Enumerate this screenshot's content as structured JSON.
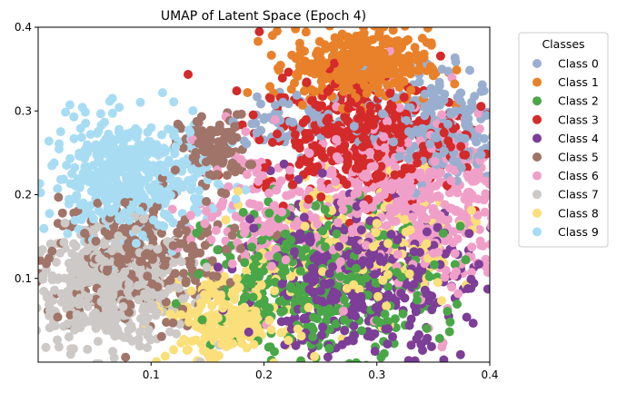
{
  "chart_data": {
    "type": "scatter",
    "title": "UMAP of Latent Space (Epoch 4)",
    "xlabel": "",
    "ylabel": "",
    "xlim": [
      0.0,
      0.4
    ],
    "ylim": [
      0.0,
      0.4
    ],
    "xticks": [
      "0.1",
      "0.2",
      "0.3",
      "0.4"
    ],
    "yticks": [
      "0.1",
      "0.2",
      "0.3",
      "0.4"
    ],
    "grid": false,
    "legend": {
      "title": "Classes",
      "placement": "outside-right"
    },
    "series": [
      {
        "name": "Class 0",
        "color": "#9aafd0",
        "points": [
          [
            0.35,
            0.29
          ],
          [
            0.37,
            0.3
          ],
          [
            0.24,
            0.3
          ],
          [
            0.33,
            0.27
          ],
          [
            0.38,
            0.25
          ],
          [
            0.36,
            0.32
          ],
          [
            0.2,
            0.29
          ],
          [
            0.3,
            0.31
          ]
        ]
      },
      {
        "name": "Class 1",
        "color": "#e8812a",
        "points": [
          [
            0.28,
            0.38
          ],
          [
            0.3,
            0.37
          ],
          [
            0.32,
            0.36
          ],
          [
            0.26,
            0.35
          ],
          [
            0.29,
            0.34
          ],
          [
            0.27,
            0.33
          ],
          [
            0.31,
            0.34
          ],
          [
            0.25,
            0.37
          ]
        ]
      },
      {
        "name": "Class 2",
        "color": "#4aa748",
        "points": [
          [
            0.26,
            0.06
          ],
          [
            0.24,
            0.09
          ],
          [
            0.28,
            0.08
          ],
          [
            0.22,
            0.12
          ],
          [
            0.3,
            0.05
          ],
          [
            0.19,
            0.1
          ],
          [
            0.32,
            0.09
          ],
          [
            0.25,
            0.14
          ]
        ]
      },
      {
        "name": "Class 3",
        "color": "#d42a2a",
        "points": [
          [
            0.28,
            0.28
          ],
          [
            0.31,
            0.3
          ],
          [
            0.26,
            0.25
          ],
          [
            0.33,
            0.24
          ],
          [
            0.24,
            0.27
          ],
          [
            0.3,
            0.22
          ],
          [
            0.29,
            0.32
          ],
          [
            0.35,
            0.27
          ]
        ]
      },
      {
        "name": "Class 4",
        "color": "#7d3e97",
        "points": [
          [
            0.27,
            0.05
          ],
          [
            0.32,
            0.08
          ],
          [
            0.24,
            0.03
          ],
          [
            0.29,
            0.12
          ],
          [
            0.34,
            0.11
          ],
          [
            0.2,
            0.07
          ],
          [
            0.31,
            0.04
          ],
          [
            0.25,
            0.16
          ]
        ]
      },
      {
        "name": "Class 5",
        "color": "#a07468",
        "points": [
          [
            0.15,
            0.26
          ],
          [
            0.17,
            0.25
          ],
          [
            0.12,
            0.2
          ],
          [
            0.08,
            0.15
          ],
          [
            0.05,
            0.13
          ],
          [
            0.13,
            0.17
          ],
          [
            0.03,
            0.1
          ],
          [
            0.11,
            0.22
          ]
        ]
      },
      {
        "name": "Class 6",
        "color": "#f0a0c8",
        "points": [
          [
            0.33,
            0.21
          ],
          [
            0.37,
            0.18
          ],
          [
            0.35,
            0.13
          ],
          [
            0.3,
            0.19
          ],
          [
            0.27,
            0.2
          ],
          [
            0.39,
            0.22
          ],
          [
            0.34,
            0.16
          ],
          [
            0.32,
            0.1
          ]
        ]
      },
      {
        "name": "Class 7",
        "color": "#cdc9c7",
        "points": [
          [
            0.06,
            0.1
          ],
          [
            0.04,
            0.08
          ],
          [
            0.07,
            0.06
          ],
          [
            0.09,
            0.11
          ],
          [
            0.03,
            0.13
          ],
          [
            0.1,
            0.07
          ],
          [
            0.05,
            0.05
          ],
          [
            0.08,
            0.09
          ]
        ]
      },
      {
        "name": "Class 8",
        "color": "#fadf7a",
        "points": [
          [
            0.15,
            0.04
          ],
          [
            0.17,
            0.03
          ],
          [
            0.19,
            0.05
          ],
          [
            0.14,
            0.06
          ],
          [
            0.27,
            0.15
          ],
          [
            0.3,
            0.14
          ],
          [
            0.22,
            0.02
          ],
          [
            0.33,
            0.16
          ]
        ]
      },
      {
        "name": "Class 9",
        "color": "#a8dcf2",
        "points": [
          [
            0.07,
            0.24
          ],
          [
            0.09,
            0.26
          ],
          [
            0.05,
            0.22
          ],
          [
            0.11,
            0.25
          ],
          [
            0.04,
            0.19
          ],
          [
            0.08,
            0.21
          ],
          [
            0.06,
            0.17
          ],
          [
            0.1,
            0.28
          ]
        ]
      }
    ],
    "clusters": [
      {
        "series": 7,
        "cx": 0.065,
        "cy": 0.09,
        "sx": 0.035,
        "sy": 0.035,
        "n": 520
      },
      {
        "series": 5,
        "cx": 0.085,
        "cy": 0.12,
        "sx": 0.04,
        "sy": 0.04,
        "n": 300
      },
      {
        "series": 5,
        "cx": 0.155,
        "cy": 0.255,
        "sx": 0.015,
        "sy": 0.02,
        "n": 130
      },
      {
        "series": 9,
        "cx": 0.08,
        "cy": 0.22,
        "sx": 0.035,
        "sy": 0.035,
        "n": 460
      },
      {
        "series": 1,
        "cx": 0.285,
        "cy": 0.355,
        "sx": 0.03,
        "sy": 0.022,
        "n": 380
      },
      {
        "series": 3,
        "cx": 0.285,
        "cy": 0.27,
        "sx": 0.045,
        "sy": 0.035,
        "n": 420
      },
      {
        "series": 0,
        "cx": 0.35,
        "cy": 0.28,
        "sx": 0.03,
        "sy": 0.035,
        "n": 230
      },
      {
        "series": 0,
        "cx": 0.23,
        "cy": 0.29,
        "sx": 0.03,
        "sy": 0.015,
        "n": 60
      },
      {
        "series": 6,
        "cx": 0.33,
        "cy": 0.19,
        "sx": 0.045,
        "sy": 0.055,
        "n": 520
      },
      {
        "series": 8,
        "cx": 0.165,
        "cy": 0.05,
        "sx": 0.025,
        "sy": 0.025,
        "n": 240
      },
      {
        "series": 8,
        "cx": 0.29,
        "cy": 0.14,
        "sx": 0.05,
        "sy": 0.04,
        "n": 200
      },
      {
        "series": 2,
        "cx": 0.25,
        "cy": 0.1,
        "sx": 0.05,
        "sy": 0.045,
        "n": 420
      },
      {
        "series": 4,
        "cx": 0.28,
        "cy": 0.1,
        "sx": 0.05,
        "sy": 0.045,
        "n": 480
      },
      {
        "series": 6,
        "cx": 0.2,
        "cy": 0.18,
        "sx": 0.03,
        "sy": 0.04,
        "n": 150
      }
    ]
  }
}
